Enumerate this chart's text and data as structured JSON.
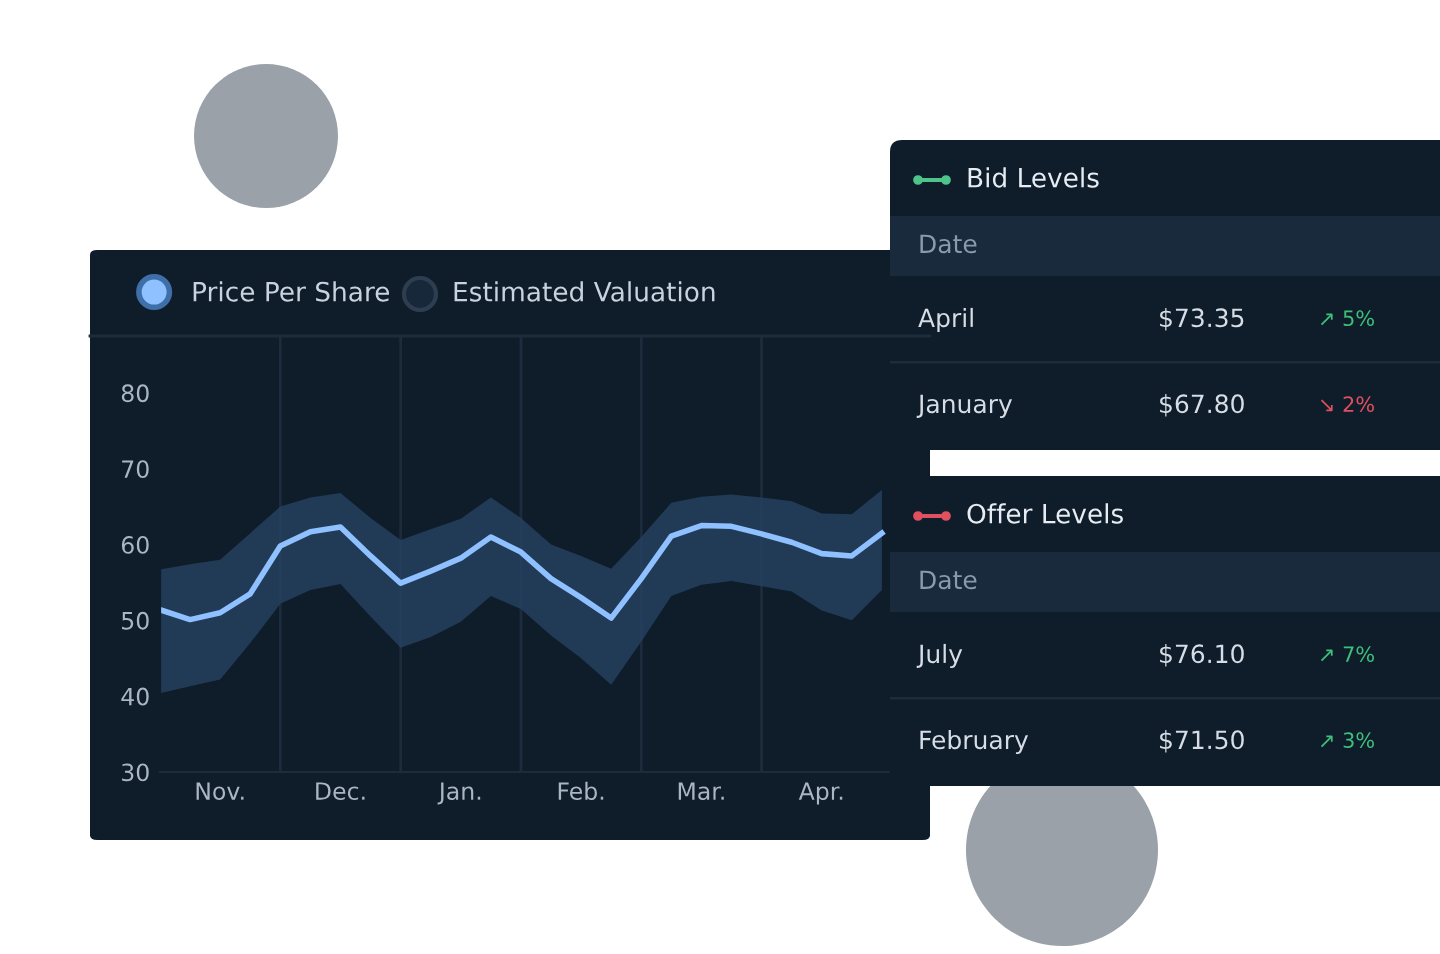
{
  "chart_data": [
    {
      "type": "line",
      "categories": [
        null,
        null,
        "Nov.",
        null,
        null,
        null,
        "Dec.",
        null,
        null,
        null,
        "Jan.",
        null,
        null,
        null,
        "Feb.",
        null,
        null,
        null,
        "Mar.",
        null,
        null,
        null,
        "Apr.",
        null,
        null
      ],
      "series": [
        {
          "name": "Price Per Share",
          "color": "#8fc0ff",
          "values": [
            51.4,
            50.1,
            51.0,
            53.5,
            59.8,
            61.7,
            62.3,
            58.5,
            54.9,
            56.5,
            58.2,
            61.0,
            59.0,
            55.5,
            53.0,
            50.3,
            55.5,
            61.1,
            62.5,
            62.4,
            61.4,
            60.3,
            58.8,
            58.5,
            61.5
          ],
          "lower": [
            40.4,
            41.3,
            42.2,
            47.0,
            52.2,
            54.0,
            54.8,
            50.5,
            46.4,
            47.8,
            49.8,
            53.2,
            51.5,
            48.0,
            45.0,
            41.5,
            47.2,
            53.2,
            54.7,
            55.2,
            54.5,
            53.8,
            51.3,
            50.0,
            54.0
          ],
          "upper": [
            56.7,
            57.4,
            58.0,
            61.5,
            65.0,
            66.2,
            66.8,
            63.5,
            60.6,
            62.0,
            63.4,
            66.2,
            63.5,
            60.0,
            58.5,
            56.8,
            61.0,
            65.5,
            66.3,
            66.6,
            66.2,
            65.7,
            64.1,
            64.0,
            67.2
          ]
        }
      ],
      "ylim": [
        30,
        87.5
      ],
      "yticks": [
        30,
        40,
        50,
        60,
        70,
        80
      ],
      "grid": "x",
      "legend": "top left",
      "marker": "none",
      "line_style": "solid",
      "annotations": [
        "Estimated Valuation"
      ]
    },
    {
      "type": "other",
      "title": "Bid Levels",
      "color": "#4fc48a",
      "annotations": [
        "Date",
        "April",
        "$73.35",
        "↗ 5%",
        "January",
        "$67.80",
        "↘ 2%"
      ],
      "colors": [
        "#8a9aab",
        "#d6dde5",
        "#d6dde5",
        "#3fc07a",
        "#d6dde5",
        "#d6dde5",
        "#e0505e"
      ]
    },
    {
      "type": "other",
      "title": "Offer Levels",
      "color": "#e0505e",
      "annotations": [
        "Date",
        "July",
        "$76.10",
        "↗ 7%",
        "February",
        "$71.50",
        "↗ 3%"
      ],
      "colors": [
        "#8a9aab",
        "#d6dde5",
        "#d6dde5",
        "#3fc07a",
        "#d6dde5",
        "#d6dde5",
        "#3fc07a"
      ]
    }
  ]
}
